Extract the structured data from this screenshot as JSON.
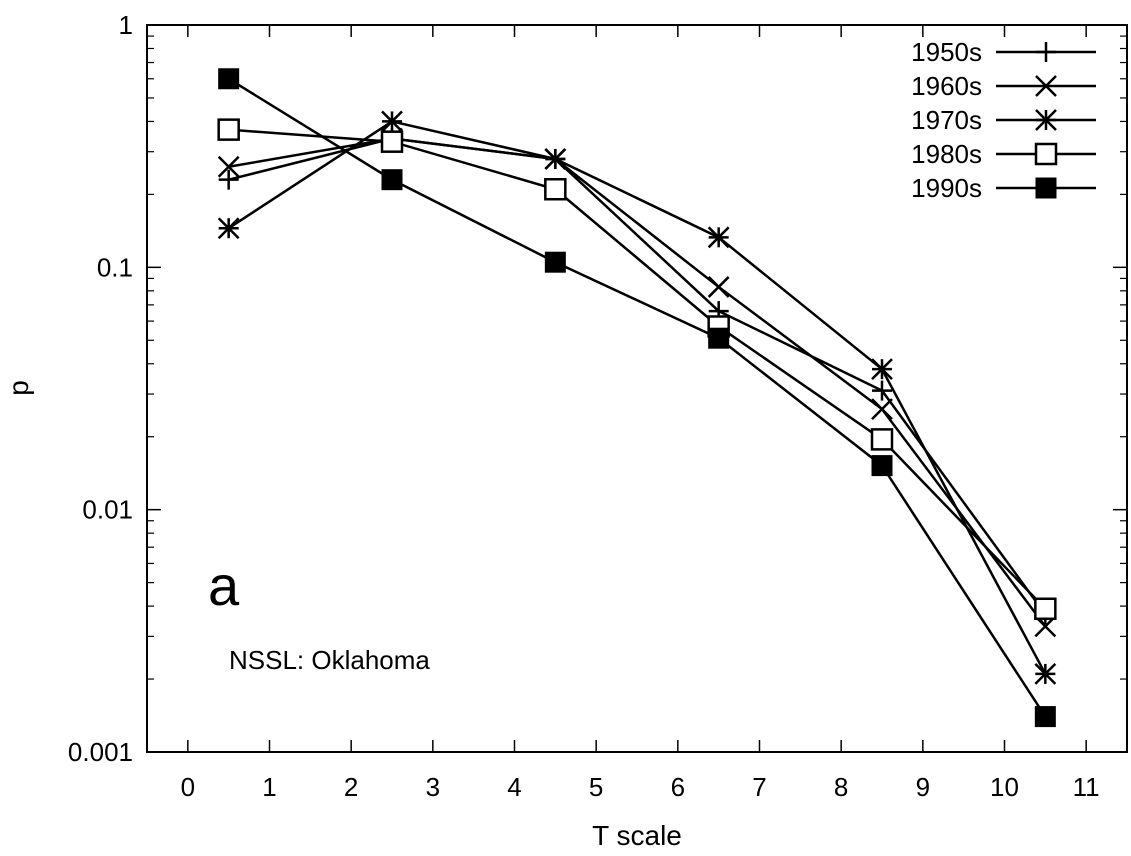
{
  "chart_data": {
    "type": "line",
    "title": "",
    "xlabel": "T scale",
    "ylabel": "p",
    "xlim": [
      -0.5,
      11.5
    ],
    "ylim": [
      0.001,
      1
    ],
    "y_scale": "log",
    "x_ticks": [
      0,
      1,
      2,
      3,
      4,
      5,
      6,
      7,
      8,
      9,
      10,
      11
    ],
    "y_ticks": [
      0.001,
      0.01,
      0.1,
      1
    ],
    "y_tick_labels": [
      "0.001",
      "0.01",
      "0.1",
      "1"
    ],
    "grid": false,
    "legend_position": "top-right",
    "x": [
      0.5,
      2.5,
      4.5,
      6.5,
      8.5,
      10.5
    ],
    "series": [
      {
        "name": "1950s",
        "marker": "plus",
        "values": [
          0.23,
          0.34,
          0.28,
          0.066,
          0.031,
          0.0037
        ]
      },
      {
        "name": "1960s",
        "marker": "cross",
        "values": [
          0.26,
          0.34,
          0.28,
          0.083,
          0.026,
          0.0033
        ]
      },
      {
        "name": "1970s",
        "marker": "star",
        "values": [
          0.145,
          0.4,
          0.28,
          0.133,
          0.038,
          0.0021
        ]
      },
      {
        "name": "1980s",
        "marker": "open-square",
        "values": [
          0.37,
          0.33,
          0.21,
          0.057,
          0.0195,
          0.0039
        ]
      },
      {
        "name": "1990s",
        "marker": "filled-square",
        "values": [
          0.6,
          0.23,
          0.105,
          0.051,
          0.0152,
          0.0014
        ]
      }
    ],
    "panel_label": "a",
    "annotation": "NSSL: Oklahoma"
  }
}
